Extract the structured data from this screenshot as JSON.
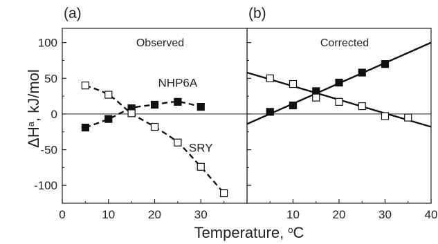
{
  "figure": {
    "shared_ylabel_main": "ΔH",
    "shared_ylabel_sup": "a",
    "shared_ylabel_rest": ", kJ/mol",
    "xlabel_main": "Temperature, ",
    "xlabel_sup": "o",
    "xlabel_unit": "C"
  },
  "chart_data": [
    {
      "type": "scatter",
      "panel_label": "(a)",
      "title": "Observed",
      "xlim": [
        0,
        40
      ],
      "ylim": [
        -125,
        120
      ],
      "xticks": [
        0,
        10,
        20,
        30
      ],
      "yticks": [
        -100,
        -50,
        0,
        50,
        100
      ],
      "xtick_labels": [
        "0",
        "10",
        "20",
        "30"
      ],
      "ytick_labels": [
        "-100",
        "-50",
        "0",
        "50",
        "100"
      ],
      "zero_line": true,
      "annotations": [
        {
          "text": "NHP6A",
          "x": 25,
          "y": 38
        },
        {
          "text": "SRY",
          "x": 30,
          "y": -53
        }
      ],
      "series": [
        {
          "label": "NHP6A",
          "marker": "filled-square",
          "fit": "dashed-curve",
          "x": [
            5,
            10,
            15,
            20,
            25,
            30
          ],
          "y": [
            -19,
            -7,
            8,
            13,
            17,
            10
          ]
        },
        {
          "label": "SRY",
          "marker": "open-square",
          "fit": "dashed-curve",
          "x": [
            5,
            10,
            15,
            20,
            25,
            30,
            35
          ],
          "y": [
            40,
            27,
            1,
            -18,
            -40,
            -74,
            -111
          ]
        }
      ]
    },
    {
      "type": "scatter",
      "panel_label": "(b)",
      "title": "Corrected",
      "xlim": [
        0,
        40
      ],
      "ylim": [
        -125,
        120
      ],
      "xticks": [
        0,
        10,
        20,
        30,
        40
      ],
      "xtick_labels": [
        "",
        "10",
        "20",
        "30",
        "40"
      ],
      "yticks": [
        -100,
        -50,
        0,
        50,
        100
      ],
      "zero_line": true,
      "series": [
        {
          "label": "NHP6A",
          "marker": "filled-square",
          "fit": "solid-line",
          "x": [
            5,
            10,
            15,
            20,
            25,
            30
          ],
          "y": [
            3,
            12,
            32,
            44,
            58,
            70
          ],
          "fit_line": {
            "x": [
              0,
              40
            ],
            "y": [
              -14,
              100
            ]
          }
        },
        {
          "label": "SRY",
          "marker": "open-square",
          "fit": "solid-line",
          "x": [
            5,
            10,
            15,
            20,
            25,
            30,
            35
          ],
          "y": [
            50,
            42,
            23,
            17,
            11,
            -3,
            -5
          ],
          "fit_line": {
            "x": [
              0,
              40
            ],
            "y": [
              58,
              -18
            ]
          }
        }
      ]
    }
  ]
}
